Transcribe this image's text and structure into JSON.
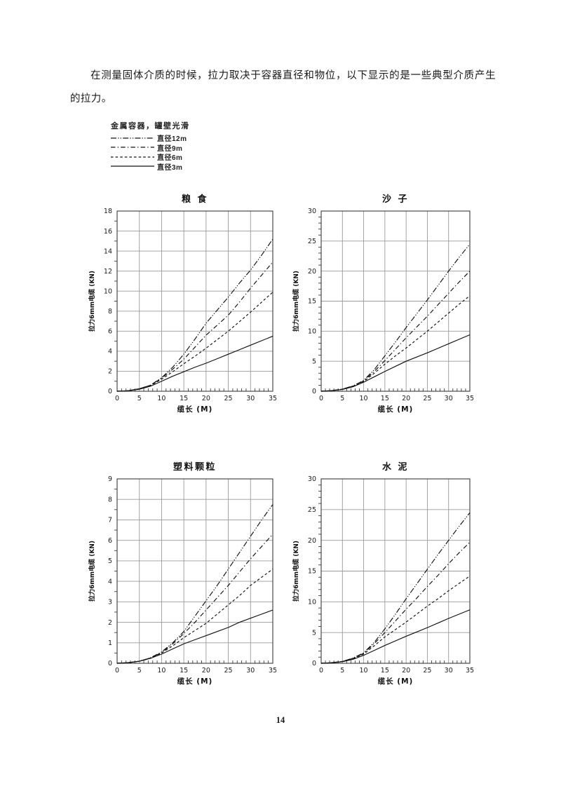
{
  "page": {
    "intro_text": "在测量固体介质的时候，拉力取决于容器直径和物位，以下显示的是一些典型介质产生的拉力。",
    "page_number": "14"
  },
  "legend": {
    "title": "金属容器，罐壁光滑",
    "entries": [
      {
        "label": "直径12m",
        "style": "dashdotdot"
      },
      {
        "label": "直径9m",
        "style": "dashdot"
      },
      {
        "label": "直径6m",
        "style": "dashed"
      },
      {
        "label": "直径3m",
        "style": "solid"
      }
    ]
  },
  "styles": {
    "line_color": "#111111",
    "grid_color": "#9a9a9a",
    "box_color": "#3a3a3a"
  },
  "chart_data": [
    {
      "type": "line",
      "title": "粮 食",
      "xlabel": "缆长 (M)",
      "ylabel": "拉力6mm电缆 (KN)",
      "xlim": [
        0,
        35
      ],
      "ylim": [
        0,
        18
      ],
      "x_major_step": 5,
      "x_minor_step": 1,
      "y_major_step": 2,
      "y_minor_step": 1,
      "grid": true,
      "legend_position": "none",
      "x": [
        0,
        2.5,
        5,
        7.5,
        10,
        12.5,
        15,
        17.5,
        20,
        22.5,
        25,
        27.5,
        30,
        32.5,
        35
      ],
      "series": [
        {
          "name": "直径12m",
          "style": "dashdotdot",
          "values": [
            0,
            0.05,
            0.25,
            0.6,
            1.35,
            2.4,
            3.7,
            5.2,
            6.8,
            8.1,
            9.4,
            10.8,
            12.1,
            13.6,
            15.2
          ]
        },
        {
          "name": "直径9m",
          "style": "dashdot",
          "values": [
            0,
            0.05,
            0.25,
            0.6,
            1.3,
            2.2,
            3.2,
            4.4,
            5.6,
            6.6,
            7.6,
            8.9,
            10.3,
            11.6,
            12.9
          ]
        },
        {
          "name": "直径6m",
          "style": "dashed",
          "values": [
            0,
            0.05,
            0.25,
            0.55,
            1.2,
            1.95,
            2.75,
            3.5,
            4.3,
            5.15,
            6.0,
            6.95,
            7.9,
            8.9,
            9.9
          ]
        },
        {
          "name": "直径3m",
          "style": "solid",
          "values": [
            0,
            0.05,
            0.2,
            0.5,
            1.0,
            1.5,
            1.95,
            2.4,
            2.8,
            3.25,
            3.7,
            4.15,
            4.6,
            5.05,
            5.5
          ]
        }
      ]
    },
    {
      "type": "line",
      "title": "沙 子",
      "xlabel": "缆长 (M)",
      "ylabel": "拉力6mm电缆 (KN)",
      "xlim": [
        0,
        35
      ],
      "ylim": [
        0,
        30
      ],
      "x_major_step": 5,
      "x_minor_step": 1,
      "y_major_step": 5,
      "y_minor_step": 1,
      "grid": true,
      "legend_position": "none",
      "x": [
        0,
        2.5,
        5,
        7.5,
        10,
        12.5,
        15,
        17.5,
        20,
        22.5,
        25,
        27.5,
        30,
        32.5,
        35
      ],
      "series": [
        {
          "name": "直径12m",
          "style": "dashdotdot",
          "values": [
            0,
            0.1,
            0.35,
            0.9,
            1.8,
            3.6,
            5.9,
            8.2,
            10.6,
            12.9,
            15.2,
            17.6,
            20.0,
            22.3,
            24.5
          ]
        },
        {
          "name": "直径9m",
          "style": "dashdot",
          "values": [
            0,
            0.1,
            0.35,
            0.85,
            1.7,
            3.3,
            5.1,
            7.0,
            8.9,
            10.7,
            12.5,
            14.4,
            16.3,
            18.2,
            20.0
          ]
        },
        {
          "name": "直径6m",
          "style": "dashed",
          "values": [
            0,
            0.1,
            0.3,
            0.8,
            1.6,
            3.0,
            4.5,
            5.9,
            7.2,
            8.6,
            10.0,
            11.5,
            13.0,
            14.5,
            15.9
          ]
        },
        {
          "name": "直径3m",
          "style": "solid",
          "values": [
            0,
            0.1,
            0.3,
            0.75,
            1.5,
            2.4,
            3.3,
            4.15,
            5.0,
            5.7,
            6.4,
            7.15,
            7.9,
            8.65,
            9.4
          ]
        }
      ]
    },
    {
      "type": "line",
      "title": "塑料颗粒",
      "xlabel": "缆长 (M)",
      "ylabel": "拉力6mm电缆 (KN)",
      "xlim": [
        0,
        35
      ],
      "ylim": [
        0,
        9
      ],
      "x_major_step": 5,
      "x_minor_step": 1,
      "y_major_step": 1,
      "y_minor_step": 0.5,
      "grid": true,
      "legend_position": "none",
      "x": [
        0,
        2.5,
        5,
        7.5,
        10,
        12.5,
        15,
        17.5,
        20,
        22.5,
        25,
        27.5,
        30,
        32.5,
        35
      ],
      "series": [
        {
          "name": "直径12m",
          "style": "dashdotdot",
          "values": [
            0,
            0.03,
            0.1,
            0.27,
            0.55,
            1.0,
            1.55,
            2.3,
            3.05,
            3.8,
            4.6,
            5.4,
            6.2,
            7.0,
            7.75
          ]
        },
        {
          "name": "直径9m",
          "style": "dashdot",
          "values": [
            0,
            0.03,
            0.1,
            0.26,
            0.52,
            0.95,
            1.45,
            2.0,
            2.6,
            3.2,
            3.8,
            4.45,
            5.1,
            5.7,
            6.3
          ]
        },
        {
          "name": "直径6m",
          "style": "dashed",
          "values": [
            0,
            0.03,
            0.1,
            0.25,
            0.5,
            0.85,
            1.25,
            1.6,
            1.95,
            2.4,
            2.85,
            3.3,
            3.8,
            4.2,
            4.6
          ]
        },
        {
          "name": "直径3m",
          "style": "solid",
          "values": [
            0,
            0.03,
            0.1,
            0.24,
            0.45,
            0.7,
            0.95,
            1.15,
            1.35,
            1.55,
            1.75,
            2.0,
            2.2,
            2.4,
            2.6
          ]
        }
      ]
    },
    {
      "type": "line",
      "title": "水 泥",
      "xlabel": "缆长 (M)",
      "ylabel": "拉力6mm电缆 (KN)",
      "xlim": [
        0,
        35
      ],
      "ylim": [
        0,
        30
      ],
      "x_major_step": 5,
      "x_minor_step": 1,
      "y_major_step": 5,
      "y_minor_step": 1,
      "grid": true,
      "legend_position": "none",
      "x": [
        0,
        2.5,
        5,
        7.5,
        10,
        12.5,
        15,
        17.5,
        20,
        22.5,
        25,
        27.5,
        30,
        32.5,
        35
      ],
      "series": [
        {
          "name": "直径12m",
          "style": "dashdotdot",
          "values": [
            0,
            0.1,
            0.3,
            0.85,
            1.7,
            3.4,
            5.6,
            8.0,
            10.5,
            12.9,
            15.3,
            17.7,
            20.0,
            22.3,
            24.5
          ]
        },
        {
          "name": "直径9m",
          "style": "dashdot",
          "values": [
            0,
            0.1,
            0.3,
            0.8,
            1.6,
            3.2,
            5.0,
            6.9,
            8.8,
            10.6,
            12.5,
            14.3,
            16.2,
            18.0,
            19.7
          ]
        },
        {
          "name": "直径6m",
          "style": "dashed",
          "values": [
            0,
            0.1,
            0.3,
            0.75,
            1.5,
            2.85,
            4.3,
            5.5,
            6.7,
            8.0,
            9.3,
            10.5,
            11.8,
            13.0,
            14.2
          ]
        },
        {
          "name": "直径3m",
          "style": "solid",
          "values": [
            0,
            0.08,
            0.25,
            0.65,
            1.3,
            2.1,
            2.9,
            3.65,
            4.4,
            5.1,
            5.8,
            6.55,
            7.3,
            8.0,
            8.7
          ]
        }
      ]
    }
  ]
}
